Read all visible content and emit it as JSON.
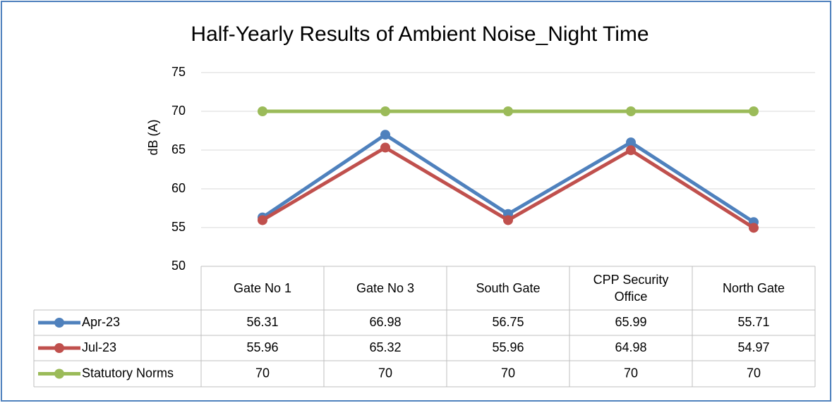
{
  "chart_data": {
    "type": "line",
    "title": "Half-Yearly Results of Ambient Noise_Night Time",
    "y_label": "dB (A)",
    "categories": [
      "Gate No 1",
      "Gate No 3",
      "South Gate",
      "CPP Security Office",
      "North Gate"
    ],
    "series": [
      {
        "name": "Apr-23",
        "color": "#4f81bd",
        "values": [
          56.31,
          66.98,
          56.75,
          65.99,
          55.71
        ]
      },
      {
        "name": "Jul-23",
        "color": "#c0504d",
        "values": [
          55.96,
          65.32,
          55.96,
          64.98,
          54.97
        ]
      },
      {
        "name": "Statutory Norms",
        "color": "#9bbb59",
        "values": [
          70,
          70,
          70,
          70,
          70
        ]
      }
    ],
    "ylim": [
      50,
      75
    ],
    "yticks": [
      50,
      55,
      60,
      65,
      70,
      75
    ],
    "grid": true,
    "data_table": true
  }
}
